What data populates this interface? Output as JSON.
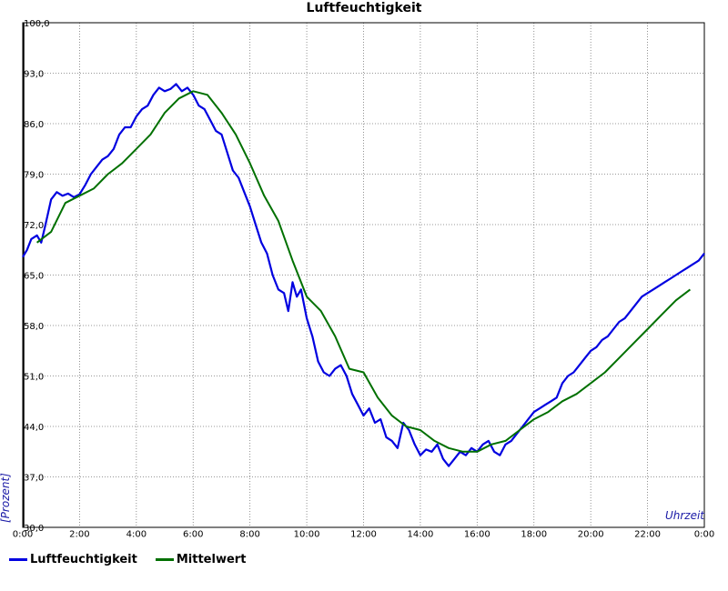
{
  "chart_data": {
    "type": "line",
    "title": "Luftfeuchtigkeit",
    "xlabel": "Uhrzeit",
    "ylabel": "[Prozent]",
    "x_ticks": [
      "0:00",
      "2:00",
      "4:00",
      "6:00",
      "8:00",
      "10:00",
      "12:00",
      "14:00",
      "16:00",
      "18:00",
      "20:00",
      "22:00",
      "0:00"
    ],
    "y_ticks": [
      "30,0",
      "37,0",
      "44,0",
      "51,0",
      "58,0",
      "65,0",
      "72,0",
      "79,0",
      "86,0",
      "93,0",
      "100,0"
    ],
    "xlim": [
      0,
      24
    ],
    "ylim": [
      30,
      100
    ],
    "grid": true,
    "legend_position": "bottom-left",
    "series": [
      {
        "name": "Luftfeuchtigkeit",
        "color": "#0000e0",
        "x": [
          0.0,
          0.15,
          0.3,
          0.5,
          0.65,
          0.8,
          1.0,
          1.2,
          1.4,
          1.6,
          1.8,
          2.0,
          2.2,
          2.4,
          2.6,
          2.8,
          3.0,
          3.2,
          3.4,
          3.6,
          3.8,
          4.0,
          4.2,
          4.4,
          4.6,
          4.8,
          5.0,
          5.2,
          5.4,
          5.6,
          5.8,
          6.0,
          6.2,
          6.4,
          6.6,
          6.8,
          7.0,
          7.2,
          7.4,
          7.6,
          7.8,
          8.0,
          8.2,
          8.4,
          8.6,
          8.8,
          9.0,
          9.2,
          9.35,
          9.5,
          9.65,
          9.8,
          10.0,
          10.2,
          10.4,
          10.6,
          10.8,
          11.0,
          11.2,
          11.4,
          11.6,
          11.8,
          12.0,
          12.2,
          12.4,
          12.6,
          12.8,
          13.0,
          13.2,
          13.4,
          13.6,
          13.8,
          14.0,
          14.2,
          14.4,
          14.6,
          14.8,
          15.0,
          15.2,
          15.4,
          15.6,
          15.8,
          16.0,
          16.2,
          16.4,
          16.6,
          16.8,
          17.0,
          17.2,
          17.4,
          17.6,
          17.8,
          18.0,
          18.2,
          18.4,
          18.6,
          18.8,
          19.0,
          19.2,
          19.4,
          19.6,
          19.8,
          20.0,
          20.2,
          20.4,
          20.6,
          20.8,
          21.0,
          21.2,
          21.4,
          21.6,
          21.8,
          22.0,
          22.2,
          22.4,
          22.6,
          22.8,
          23.0,
          23.2,
          23.4,
          23.6,
          23.8,
          24.0
        ],
        "values": [
          67.5,
          68.5,
          70.0,
          70.5,
          69.5,
          72.0,
          75.5,
          76.5,
          76.0,
          76.3,
          75.8,
          76.2,
          77.5,
          79.0,
          80.0,
          81.0,
          81.5,
          82.5,
          84.5,
          85.5,
          85.5,
          87.0,
          88.0,
          88.5,
          90.0,
          91.0,
          90.5,
          90.8,
          91.5,
          90.5,
          91.0,
          90.0,
          88.5,
          88.0,
          86.5,
          85.0,
          84.5,
          82.0,
          79.5,
          78.5,
          76.5,
          74.5,
          72.0,
          69.5,
          68.0,
          65.0,
          63.0,
          62.5,
          60.0,
          64.0,
          62.0,
          63.0,
          59.0,
          56.5,
          53.0,
          51.5,
          51.0,
          52.0,
          52.5,
          51.0,
          48.5,
          47.0,
          45.5,
          46.5,
          44.5,
          45.0,
          42.5,
          42.0,
          41.0,
          44.5,
          43.5,
          41.5,
          40.0,
          40.8,
          40.5,
          41.5,
          39.5,
          38.5,
          39.5,
          40.5,
          40.0,
          41.0,
          40.5,
          41.5,
          42.0,
          40.5,
          40.0,
          41.5,
          42.0,
          43.0,
          44.0,
          45.0,
          46.0,
          46.5,
          47.0,
          47.5,
          48.0,
          50.0,
          51.0,
          51.5,
          52.5,
          53.5,
          54.5,
          55.0,
          56.0,
          56.5,
          57.5,
          58.5,
          59.0,
          60.0,
          61.0,
          62.0,
          62.5,
          63.0,
          63.5,
          64.0,
          64.5,
          65.0,
          65.5,
          66.0,
          66.5,
          67.0,
          68.0
        ]
      },
      {
        "name": "Mittelwert",
        "color": "#007000",
        "x": [
          0.5,
          1.0,
          1.5,
          2.0,
          2.5,
          3.0,
          3.5,
          4.0,
          4.5,
          5.0,
          5.5,
          6.0,
          6.5,
          7.0,
          7.5,
          8.0,
          8.5,
          9.0,
          9.5,
          10.0,
          10.5,
          11.0,
          11.5,
          12.0,
          12.5,
          13.0,
          13.5,
          14.0,
          14.5,
          15.0,
          15.5,
          16.0,
          16.5,
          17.0,
          17.5,
          18.0,
          18.5,
          19.0,
          19.5,
          20.0,
          20.5,
          21.0,
          21.5,
          22.0,
          22.5,
          23.0,
          23.5
        ],
        "values": [
          69.5,
          71.0,
          75.0,
          76.0,
          77.0,
          79.0,
          80.5,
          82.5,
          84.5,
          87.5,
          89.5,
          90.5,
          90.0,
          87.5,
          84.5,
          80.5,
          76.0,
          72.5,
          67.0,
          62.0,
          60.0,
          56.5,
          52.0,
          51.5,
          48.0,
          45.5,
          44.0,
          43.5,
          42.0,
          41.0,
          40.5,
          40.5,
          41.5,
          42.0,
          43.5,
          45.0,
          46.0,
          47.5,
          48.5,
          50.0,
          51.5,
          53.5,
          55.5,
          57.5,
          59.5,
          61.5,
          63.0
        ]
      }
    ]
  }
}
